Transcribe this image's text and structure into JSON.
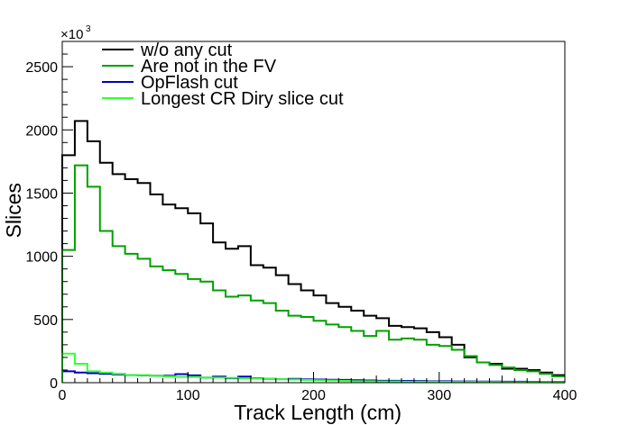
{
  "chart_data": {
    "type": "line",
    "xlabel": "Track Length (cm)",
    "ylabel": "Slices",
    "y_multiplier": "×10",
    "y_multiplier_exp": "3",
    "xlim": [
      0,
      400
    ],
    "ylim": [
      0,
      2700
    ],
    "x_ticks": [
      0,
      100,
      200,
      300,
      400
    ],
    "y_ticks": [
      0,
      500,
      1000,
      1500,
      2000,
      2500
    ],
    "grid": false,
    "legend_position": "top-left",
    "bin_edges": [
      0,
      10,
      20,
      30,
      40,
      50,
      60,
      70,
      80,
      90,
      100,
      110,
      120,
      130,
      140,
      150,
      160,
      170,
      180,
      190,
      200,
      210,
      220,
      230,
      240,
      250,
      260,
      270,
      280,
      290,
      300,
      310,
      320,
      330,
      340,
      350,
      360,
      370,
      380,
      390,
      400
    ],
    "series": [
      {
        "name": "w/o any cut",
        "color": "#000000",
        "values": [
          1800,
          2070,
          1910,
          1740,
          1650,
          1610,
          1580,
          1490,
          1410,
          1380,
          1340,
          1260,
          1110,
          1060,
          1080,
          930,
          910,
          850,
          780,
          730,
          690,
          630,
          600,
          570,
          530,
          510,
          450,
          440,
          430,
          400,
          360,
          300,
          200,
          160,
          150,
          110,
          110,
          100,
          80,
          60
        ]
      },
      {
        "name": "Are not in the FV",
        "color": "#00a000",
        "values": [
          1050,
          1720,
          1550,
          1200,
          1080,
          1020,
          980,
          920,
          890,
          860,
          820,
          800,
          730,
          680,
          690,
          650,
          630,
          570,
          530,
          520,
          490,
          460,
          440,
          410,
          370,
          410,
          340,
          350,
          340,
          300,
          290,
          260,
          210,
          160,
          140,
          120,
          100,
          90,
          70,
          50
        ]
      },
      {
        "name": "OpFlash cut",
        "color": "#0000c0",
        "values": [
          90,
          80,
          75,
          70,
          65,
          60,
          58,
          55,
          55,
          68,
          58,
          40,
          48,
          35,
          48,
          35,
          30,
          28,
          30,
          27,
          25,
          23,
          22,
          20,
          18,
          15,
          15,
          14,
          13,
          12,
          12,
          10,
          10,
          9,
          9,
          8,
          8,
          6,
          5,
          5
        ]
      },
      {
        "name": "Longest CR Diry slice cut",
        "color": "#33ff33",
        "values": [
          230,
          150,
          90,
          80,
          70,
          60,
          60,
          55,
          50,
          45,
          45,
          40,
          40,
          38,
          35,
          32,
          30,
          28,
          25,
          22,
          20,
          18,
          15,
          12,
          12,
          10,
          10,
          8,
          8,
          8,
          7,
          6,
          6,
          5,
          5,
          4,
          4,
          3,
          3,
          2
        ]
      }
    ]
  }
}
